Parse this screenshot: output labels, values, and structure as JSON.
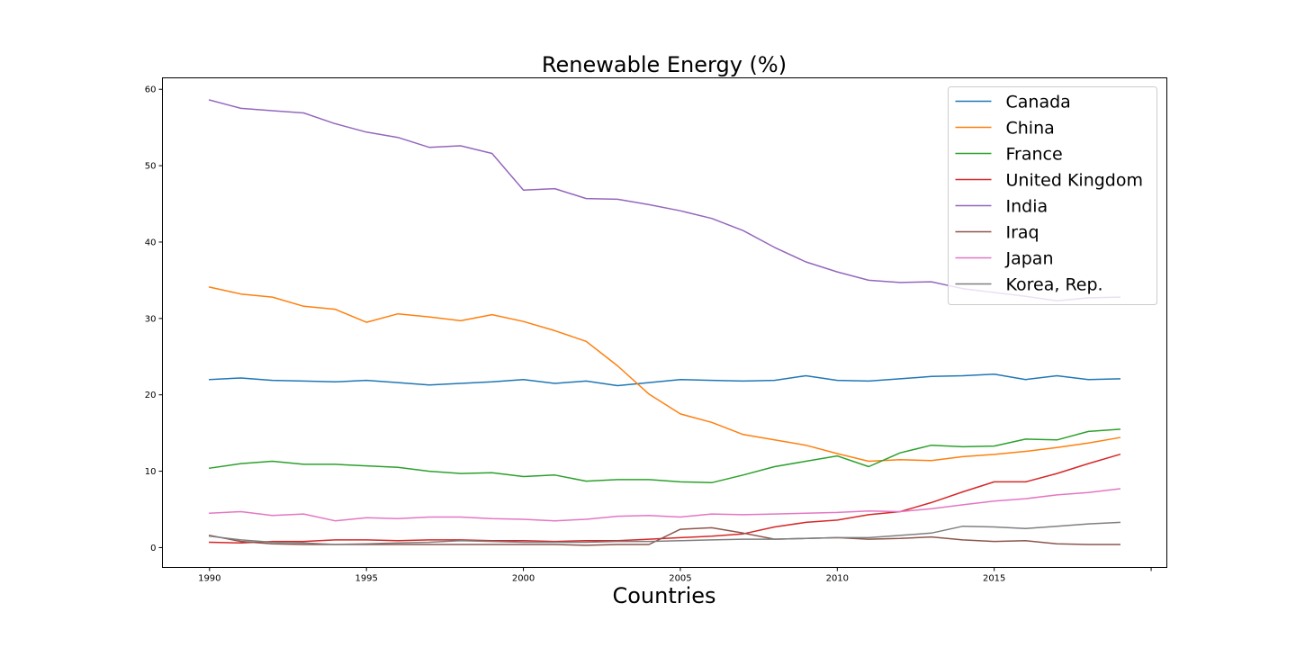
{
  "chart_data": {
    "type": "line",
    "title": "Renewable Energy (%)",
    "xlabel": "Countries",
    "ylabel": "",
    "xlim": [
      1988.5,
      2020.5
    ],
    "ylim": [
      -2.6,
      61.5
    ],
    "xticks": [
      1990,
      1995,
      2000,
      2005,
      2010,
      2015,
      2020
    ],
    "xtick_labels": [
      "1990",
      "1995",
      "2000",
      "2005",
      "2010",
      "2015",
      ""
    ],
    "yticks": [
      0,
      10,
      20,
      30,
      40,
      50,
      60
    ],
    "ytick_labels": [
      "0",
      "10",
      "20",
      "30",
      "40",
      "50",
      "60"
    ],
    "grid": false,
    "legend_position": "top-right",
    "x": [
      1990,
      1991,
      1992,
      1993,
      1994,
      1995,
      1996,
      1997,
      1998,
      1999,
      2000,
      2001,
      2002,
      2003,
      2004,
      2005,
      2006,
      2007,
      2008,
      2009,
      2010,
      2011,
      2012,
      2013,
      2014,
      2015,
      2016,
      2017,
      2018,
      2019
    ],
    "series": [
      {
        "name": "Canada",
        "color": "#1f77b4",
        "values": [
          22.0,
          22.2,
          21.9,
          21.8,
          21.7,
          21.9,
          21.6,
          21.3,
          21.5,
          21.7,
          22.0,
          21.5,
          21.8,
          21.2,
          21.6,
          22.0,
          21.9,
          21.8,
          21.9,
          22.5,
          21.9,
          21.8,
          22.1,
          22.4,
          22.5,
          22.7,
          22.0,
          22.5,
          22.0,
          22.1
        ]
      },
      {
        "name": "China",
        "color": "#ff7f0e",
        "values": [
          34.1,
          33.2,
          32.8,
          31.6,
          31.2,
          29.5,
          30.6,
          30.2,
          29.7,
          30.5,
          29.6,
          28.4,
          27.0,
          23.8,
          20.1,
          17.5,
          16.4,
          14.8,
          14.1,
          13.4,
          12.3,
          11.3,
          11.5,
          11.4,
          11.9,
          12.2,
          12.6,
          13.1,
          13.7,
          14.4
        ]
      },
      {
        "name": "France",
        "color": "#2ca02c",
        "values": [
          10.4,
          11.0,
          11.3,
          10.9,
          10.9,
          10.7,
          10.5,
          10.0,
          9.7,
          9.8,
          9.3,
          9.5,
          8.7,
          8.9,
          8.9,
          8.6,
          8.5,
          9.5,
          10.6,
          11.3,
          12.0,
          10.6,
          12.4,
          13.4,
          13.2,
          13.3,
          14.2,
          14.1,
          15.2,
          15.5
        ]
      },
      {
        "name": "United Kingdom",
        "color": "#d62728",
        "values": [
          0.7,
          0.6,
          0.8,
          0.8,
          1.0,
          1.0,
          0.9,
          1.0,
          1.0,
          0.9,
          0.9,
          0.8,
          0.9,
          0.9,
          1.1,
          1.3,
          1.5,
          1.8,
          2.7,
          3.3,
          3.6,
          4.3,
          4.7,
          5.9,
          7.3,
          8.6,
          8.6,
          9.7,
          11.0,
          12.2
        ]
      },
      {
        "name": "India",
        "color": "#9467bd",
        "values": [
          58.6,
          57.5,
          57.2,
          56.9,
          55.5,
          54.4,
          53.7,
          52.4,
          52.6,
          51.6,
          46.8,
          47.0,
          45.7,
          45.6,
          44.9,
          44.1,
          43.1,
          41.5,
          39.3,
          37.4,
          36.1,
          35.0,
          34.7,
          34.8,
          33.9,
          33.4,
          32.9,
          32.3,
          32.7,
          32.8
        ]
      },
      {
        "name": "Iraq",
        "color": "#8c564b",
        "values": [
          1.6,
          0.8,
          0.5,
          0.4,
          0.4,
          0.4,
          0.4,
          0.4,
          0.4,
          0.4,
          0.4,
          0.4,
          0.3,
          0.4,
          0.4,
          2.4,
          2.6,
          1.9,
          1.1,
          1.2,
          1.3,
          1.1,
          1.2,
          1.4,
          1.0,
          0.8,
          0.9,
          0.5,
          0.4,
          0.4
        ]
      },
      {
        "name": "Japan",
        "color": "#e377c2",
        "values": [
          4.5,
          4.7,
          4.2,
          4.4,
          3.5,
          3.9,
          3.8,
          4.0,
          4.0,
          3.8,
          3.7,
          3.5,
          3.7,
          4.1,
          4.2,
          4.0,
          4.4,
          4.3,
          4.4,
          4.5,
          4.6,
          4.8,
          4.7,
          5.1,
          5.6,
          6.1,
          6.4,
          6.9,
          7.2,
          7.7
        ]
      },
      {
        "name": "Korea, Rep.",
        "color": "#7f7f7f",
        "values": [
          1.5,
          1.0,
          0.7,
          0.6,
          0.4,
          0.5,
          0.6,
          0.7,
          0.9,
          0.8,
          0.7,
          0.7,
          0.7,
          0.8,
          0.8,
          0.9,
          1.0,
          1.1,
          1.1,
          1.2,
          1.3,
          1.3,
          1.6,
          1.9,
          2.8,
          2.7,
          2.5,
          2.8,
          3.1,
          3.3
        ]
      }
    ]
  }
}
